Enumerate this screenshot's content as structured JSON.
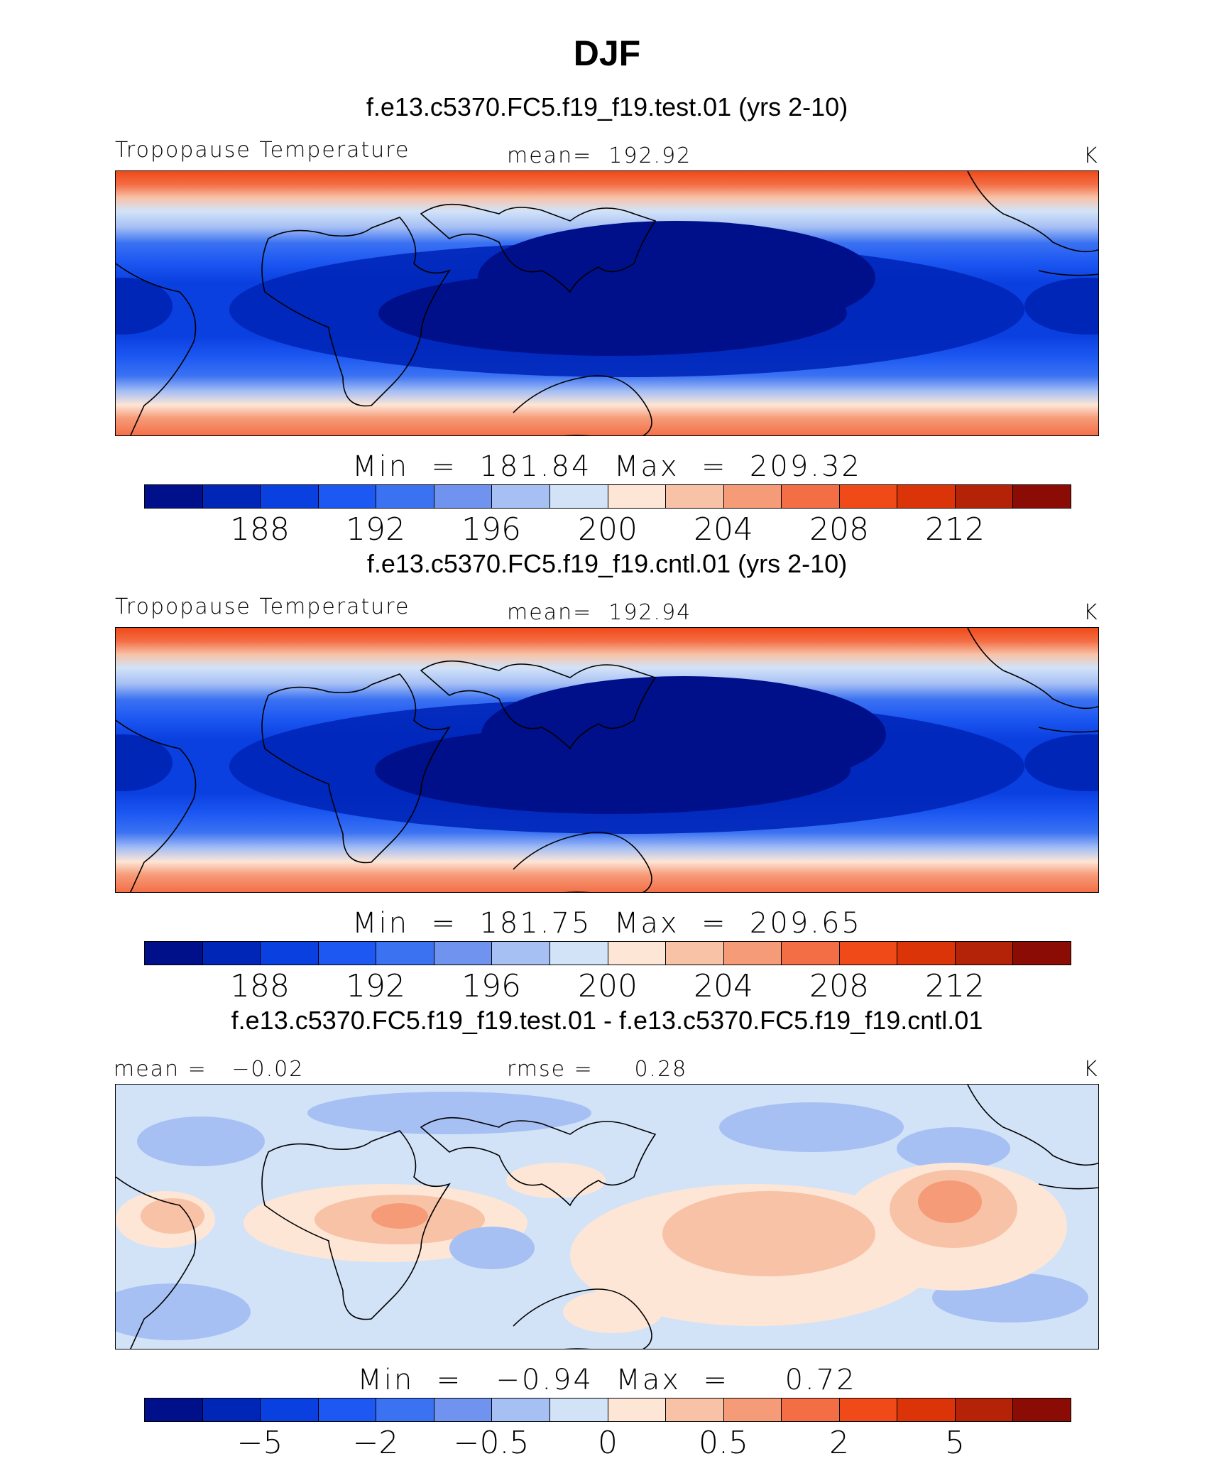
{
  "main_title": "DJF",
  "colors": [
    "#00108a",
    "#0026b8",
    "#0a3fe0",
    "#1d58f2",
    "#3b72f2",
    "#7093ef",
    "#a7c0f4",
    "#d2e3f8",
    "#fde6d6",
    "#f8c2a7",
    "#f69b78",
    "#f36d45",
    "#f04a19",
    "#dc3409",
    "#b42307",
    "#8a0c05"
  ],
  "panels": [
    {
      "case_title": "f.e13.c5370.FC5.f19_f19.test.01 (yrs 2-10)",
      "left_label": "Tropopause Temperature",
      "center_label": "mean=  192.92",
      "unit": "K",
      "minmax": "Min  =  181.84  Max  =  209.32",
      "ticks": [
        "188",
        "192",
        "196",
        "200",
        "204",
        "208",
        "212"
      ]
    },
    {
      "case_title": "f.e13.c5370.FC5.f19_f19.cntl.01 (yrs 2-10)",
      "left_label": "Tropopause Temperature",
      "center_label": "mean=  192.94",
      "unit": "K",
      "minmax": "Min  =  181.75  Max  =  209.65",
      "ticks": [
        "188",
        "192",
        "196",
        "200",
        "204",
        "208",
        "212"
      ]
    },
    {
      "case_title": "f.e13.c5370.FC5.f19_f19.test.01 - f.e13.c5370.FC5.f19_f19.cntl.01",
      "left_label": "mean =   −0.02",
      "center_label": "rmse =     0.28",
      "unit": "K",
      "minmax": "Min  =   −0.94  Max  =     0.72",
      "ticks": [
        "−5",
        "−2",
        "−0.5",
        "0",
        "0.5",
        "2",
        "5"
      ]
    }
  ]
}
